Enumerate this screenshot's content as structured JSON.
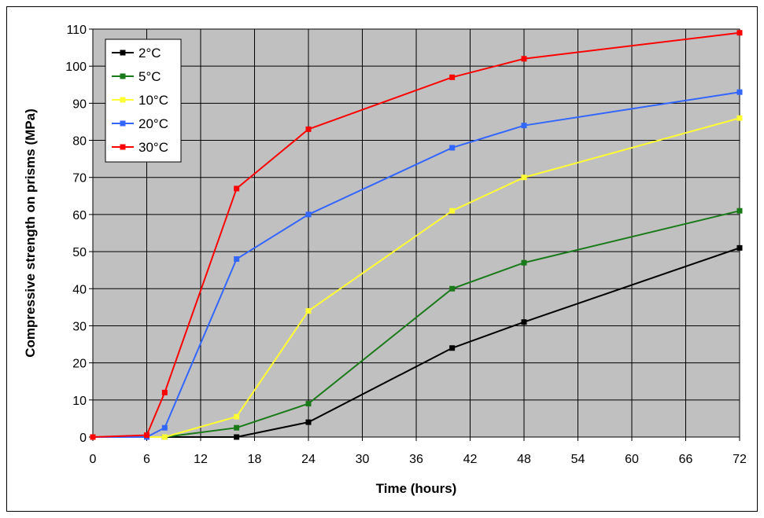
{
  "chart_data": {
    "type": "line",
    "title": "",
    "xlabel": "Time (hours)",
    "ylabel": "Compressive strength on prisms (MPa)",
    "xlim": [
      0,
      72
    ],
    "ylim": [
      0,
      110
    ],
    "xticks": [
      0,
      6,
      12,
      18,
      24,
      30,
      36,
      42,
      48,
      54,
      60,
      66,
      72
    ],
    "yticks": [
      0,
      10,
      20,
      30,
      40,
      50,
      60,
      70,
      80,
      90,
      100,
      110
    ],
    "grid": true,
    "legend_position": "top-left",
    "plot_background": "#c0c0c0",
    "series": [
      {
        "name": "2°C",
        "color": "#000000",
        "x": [
          0,
          6,
          8,
          16,
          24,
          40,
          48,
          72
        ],
        "y": [
          0,
          0,
          0,
          0,
          4,
          24,
          31,
          51
        ]
      },
      {
        "name": "5°C",
        "color": "#1a7a1a",
        "x": [
          0,
          6,
          8,
          16,
          24,
          40,
          48,
          72
        ],
        "y": [
          0,
          0,
          0,
          2.5,
          9,
          40,
          47,
          61
        ]
      },
      {
        "name": "10°C",
        "color": "#ffff33",
        "x": [
          0,
          6,
          8,
          16,
          24,
          40,
          48,
          72
        ],
        "y": [
          0,
          0,
          0,
          5.5,
          34,
          61,
          70,
          86
        ]
      },
      {
        "name": "20°C",
        "color": "#3366ff",
        "x": [
          0,
          6,
          8,
          16,
          24,
          40,
          48,
          72
        ],
        "y": [
          0,
          0,
          2.5,
          48,
          60,
          78,
          84,
          93
        ]
      },
      {
        "name": "30°C",
        "color": "#ff0000",
        "x": [
          0,
          6,
          8,
          16,
          24,
          40,
          48,
          72
        ],
        "y": [
          0,
          0.5,
          12,
          67,
          83,
          97,
          102,
          109
        ]
      }
    ]
  }
}
